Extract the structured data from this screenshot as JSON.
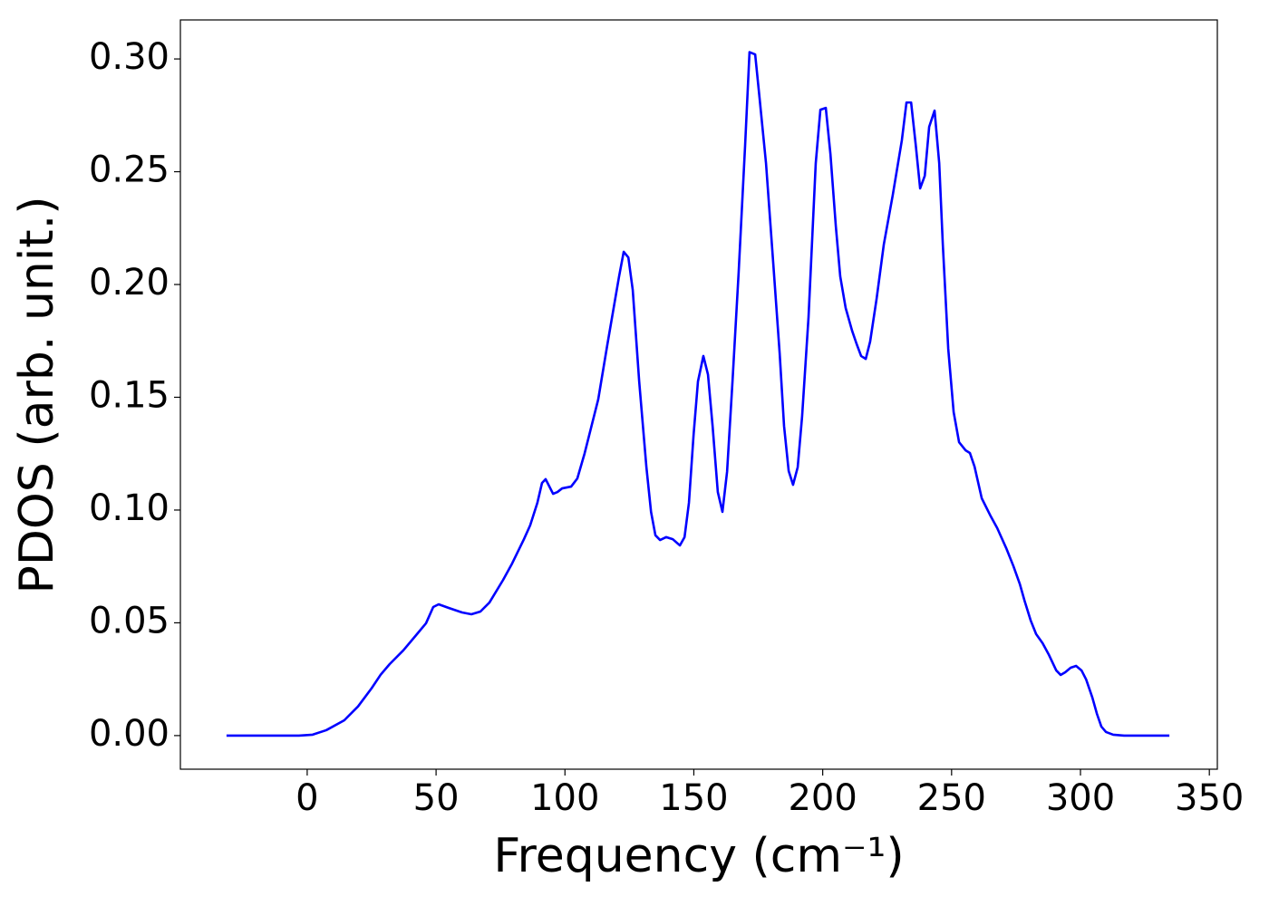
{
  "chart_data": {
    "type": "line",
    "xlabel": "Frequency (cm⁻¹)",
    "ylabel": "PDOS (arb. unit.)",
    "x": [
      -31.3,
      -3.2,
      2.1,
      7.4,
      14.4,
      19.7,
      25,
      28.5,
      32,
      37.3,
      42.6,
      46.1,
      48.9,
      51,
      54.9,
      60.1,
      63.7,
      67.2,
      70.7,
      76,
      79.5,
      84.1,
      86.5,
      89.3,
      91.1,
      92.5,
      95.4,
      97.1,
      98.9,
      102.4,
      104.8,
      107.6,
      112.9,
      116.4,
      121,
      122.8,
      124.6,
      126.3,
      128.8,
      131.6,
      133.4,
      135.1,
      136.9,
      139.3,
      141.8,
      144.6,
      146.4,
      148.1,
      149.9,
      151.6,
      153.7,
      155.5,
      157.3,
      159.3,
      161.1,
      162.9,
      165,
      167.4,
      169.9,
      171.6,
      173.8,
      175.5,
      178,
      180.8,
      183.3,
      185,
      186.8,
      188.5,
      190.3,
      192,
      194.5,
      197.3,
      199.1,
      201.2,
      203,
      205.1,
      206.8,
      208.9,
      211.4,
      213.2,
      214.9,
      216.7,
      218.4,
      220.9,
      223.7,
      227.2,
      230.7,
      232.5,
      234.3,
      236.1,
      237.8,
      239.6,
      241.3,
      243.4,
      245.2,
      246.6,
      248.7,
      250.8,
      252.9,
      255.4,
      257.1,
      258.9,
      261.7,
      265.2,
      267.7,
      271.2,
      274,
      276.5,
      278.3,
      280.7,
      282.8,
      285.3,
      287.8,
      290.6,
      292.3,
      294.1,
      296.2,
      298.3,
      300.4,
      302.2,
      304.6,
      306.4,
      308.1,
      309.9,
      312.7,
      316.9,
      334.5
    ],
    "series": [
      {
        "name": "PDOS",
        "color": "#0000ff",
        "values": [
          0,
          0,
          0.0004,
          0.0024,
          0.0068,
          0.0129,
          0.021,
          0.027,
          0.0317,
          0.0378,
          0.045,
          0.0498,
          0.057,
          0.0582,
          0.0566,
          0.0546,
          0.0538,
          0.055,
          0.059,
          0.069,
          0.0763,
          0.0871,
          0.0932,
          0.1032,
          0.112,
          0.1137,
          0.1072,
          0.108,
          0.1096,
          0.1104,
          0.114,
          0.125,
          0.149,
          0.173,
          0.2036,
          0.2145,
          0.212,
          0.1976,
          0.157,
          0.119,
          0.0992,
          0.0888,
          0.0867,
          0.088,
          0.0871,
          0.0843,
          0.088,
          0.1032,
          0.1333,
          0.157,
          0.1683,
          0.16,
          0.137,
          0.108,
          0.0992,
          0.117,
          0.157,
          0.2056,
          0.2618,
          0.303,
          0.302,
          0.2827,
          0.2538,
          0.2096,
          0.1695,
          0.1373,
          0.1173,
          0.1112,
          0.119,
          0.1414,
          0.1855,
          0.2538,
          0.2775,
          0.2783,
          0.2578,
          0.2257,
          0.2036,
          0.1896,
          0.1795,
          0.1735,
          0.1683,
          0.167,
          0.1747,
          0.1936,
          0.2177,
          0.2398,
          0.2639,
          0.2807,
          0.2807,
          0.2618,
          0.2426,
          0.2482,
          0.2699,
          0.2771,
          0.2538,
          0.2177,
          0.1715,
          0.1434,
          0.1301,
          0.1265,
          0.1253,
          0.1193,
          0.1052,
          0.0972,
          0.092,
          0.0831,
          0.0751,
          0.0671,
          0.0598,
          0.051,
          0.045,
          0.041,
          0.0357,
          0.0289,
          0.0269,
          0.0281,
          0.0301,
          0.0309,
          0.0289,
          0.0249,
          0.0169,
          0.0096,
          0.004,
          0.0016,
          0.0004,
          0,
          0
        ]
      }
    ],
    "xlim": [
      -49.2,
      353.1
    ],
    "ylim": [
      -0.0149,
      0.3173
    ],
    "xticks": [
      0,
      50,
      100,
      150,
      200,
      250,
      300,
      350
    ],
    "yticks": [
      {
        "value": 0,
        "label": "0.00"
      },
      {
        "value": 0.05,
        "label": "0.05"
      },
      {
        "value": 0.1,
        "label": "0.10"
      },
      {
        "value": 0.15,
        "label": "0.15"
      },
      {
        "value": 0.2,
        "label": "0.20"
      },
      {
        "value": 0.25,
        "label": "0.25"
      },
      {
        "value": 0.3,
        "label": "0.30"
      }
    ],
    "grid": false
  }
}
